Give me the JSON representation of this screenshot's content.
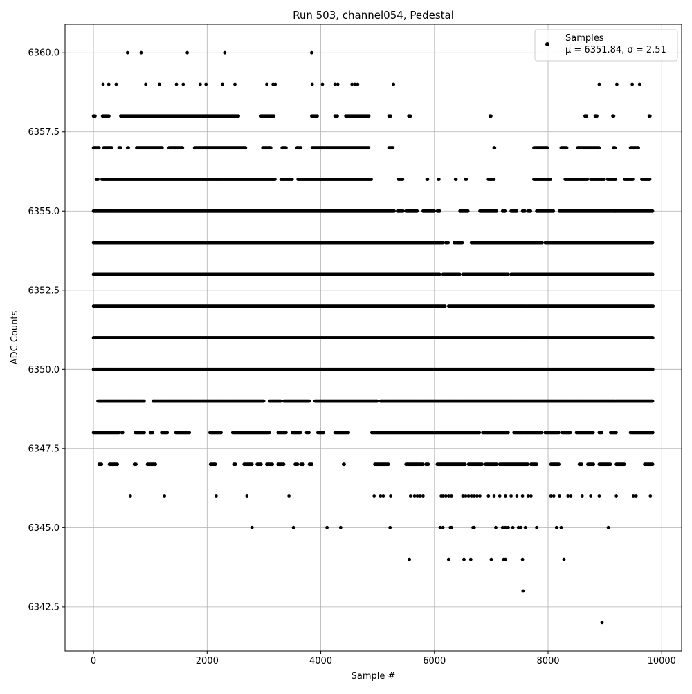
{
  "chart_data": {
    "type": "scatter",
    "title": "Run 503, channel054, Pedestal",
    "xlabel": "Sample #",
    "ylabel": "ADC Counts",
    "xlim": [
      -500,
      10350
    ],
    "ylim": [
      6341.1,
      6360.9
    ],
    "grid": true,
    "legend_position": "top-right",
    "x_ticks": [
      0,
      2000,
      4000,
      6000,
      8000,
      10000
    ],
    "x_tick_labels": [
      "0",
      "2000",
      "4000",
      "6000",
      "8000",
      "10000"
    ],
    "y_ticks": [
      6342.5,
      6345.0,
      6347.5,
      6350.0,
      6352.5,
      6355.0,
      6357.5,
      6360.0
    ],
    "y_tick_labels": [
      "6342.5",
      "6345.0",
      "6347.5",
      "6350.0",
      "6352.5",
      "6355.0",
      "6357.5",
      "6360.0"
    ],
    "colors": {
      "marker": "#000000",
      "grid": "#b0b0b0",
      "axes": "#000000",
      "legend_border": "#cccccc"
    },
    "series": [
      {
        "name": "Samples",
        "legend_stats": "μ = 6351.84, σ = 2.51",
        "level_ranges": [
          {
            "y": 6360,
            "x": [
              600,
              840,
              1650,
              2310,
              3840
            ]
          },
          {
            "y": 6359,
            "x": [
              170,
              270,
              400,
              920,
              1160,
              1460,
              1580,
              1880,
              1980,
              2270,
              2490,
              3050,
              3160,
              3200,
              3850,
              4030,
              4250,
              4300,
              4550,
              4600,
              4650,
              5280,
              8900,
              9210,
              9480,
              9610
            ]
          },
          {
            "y": 6358,
            "ranges": [
              [
                0,
                30
              ],
              [
                160,
                280
              ],
              [
                480,
                2560
              ],
              [
                2950,
                3180
              ],
              [
                3840,
                3940
              ],
              [
                4250,
                4300
              ],
              [
                4440,
                4850
              ],
              [
                5200,
                5230
              ],
              [
                5550,
                5580
              ],
              [
                6980,
                7000
              ],
              [
                8650,
                8680
              ],
              [
                8830,
                8860
              ],
              [
                9140,
                9160
              ],
              [
                9780,
                9800
              ]
            ]
          },
          {
            "y": 6357,
            "ranges": [
              [
                0,
                110
              ],
              [
                180,
                320
              ],
              [
                450,
                480
              ],
              [
                600,
                620
              ],
              [
                760,
                1220
              ],
              [
                1330,
                1580
              ],
              [
                1780,
                2680
              ],
              [
                2980,
                3120
              ],
              [
                3320,
                3400
              ],
              [
                3580,
                3650
              ],
              [
                3850,
                4850
              ],
              [
                5200,
                5280
              ],
              [
                7050,
                7060
              ],
              [
                7750,
                8000
              ],
              [
                8230,
                8330
              ],
              [
                8520,
                8900
              ],
              [
                9150,
                9180
              ],
              [
                9450,
                9600
              ]
            ]
          },
          {
            "y": 6356,
            "ranges": [
              [
                50,
                80
              ],
              [
                150,
                2200
              ],
              [
                2200,
                3200
              ],
              [
                3300,
                3500
              ],
              [
                3600,
                4900
              ],
              [
                5370,
                5450
              ],
              [
                5870,
                5880
              ],
              [
                6070,
                6080
              ],
              [
                6370,
                6380
              ],
              [
                6550,
                6560
              ],
              [
                6950,
                7050
              ],
              [
                7750,
                8050
              ],
              [
                8300,
                8700
              ],
              [
                8750,
                9000
              ],
              [
                9050,
                9200
              ],
              [
                9350,
                9500
              ],
              [
                9650,
                9800
              ]
            ]
          },
          {
            "y": 6355,
            "ranges": [
              [
                0,
                5300
              ],
              [
                5350,
                5450
              ],
              [
                5500,
                5700
              ],
              [
                5800,
                6000
              ],
              [
                6050,
                6100
              ],
              [
                6450,
                6600
              ],
              [
                6800,
                7100
              ],
              [
                7200,
                7250
              ],
              [
                7350,
                7450
              ],
              [
                7550,
                7600
              ],
              [
                7650,
                7700
              ],
              [
                7800,
                8100
              ],
              [
                8200,
                9850
              ]
            ]
          },
          {
            "y": 6354,
            "ranges": [
              [
                0,
                6150
              ],
              [
                6200,
                6250
              ],
              [
                6350,
                6500
              ],
              [
                6650,
                7900
              ],
              [
                7950,
                9850
              ]
            ]
          },
          {
            "y": 6353,
            "ranges": [
              [
                0,
                6100
              ],
              [
                6150,
                6450
              ],
              [
                6500,
                7300
              ],
              [
                7350,
                9850
              ]
            ]
          },
          {
            "y": 6352,
            "ranges": [
              [
                0,
                6200
              ],
              [
                6250,
                9850
              ]
            ]
          },
          {
            "y": 6351,
            "ranges": [
              [
                0,
                9850
              ]
            ]
          },
          {
            "y": 6350,
            "ranges": [
              [
                0,
                9850
              ]
            ]
          },
          {
            "y": 6349,
            "ranges": [
              [
                80,
                900
              ],
              [
                1050,
                3000
              ],
              [
                3100,
                3300
              ],
              [
                3350,
                3800
              ],
              [
                3900,
                5000
              ],
              [
                5050,
                9850
              ]
            ]
          },
          {
            "y": 6348,
            "ranges": [
              [
                0,
                450
              ],
              [
                500,
                520
              ],
              [
                740,
                900
              ],
              [
                1000,
                1050
              ],
              [
                1200,
                1300
              ],
              [
                1450,
                1700
              ],
              [
                2050,
                2250
              ],
              [
                2450,
                3100
              ],
              [
                3250,
                3400
              ],
              [
                3500,
                3650
              ],
              [
                3750,
                3800
              ],
              [
                3950,
                4050
              ],
              [
                4250,
                4500
              ],
              [
                4900,
                6800
              ],
              [
                6850,
                7300
              ],
              [
                7400,
                7900
              ],
              [
                7950,
                8200
              ],
              [
                8250,
                8400
              ],
              [
                8500,
                8800
              ],
              [
                8900,
                8950
              ],
              [
                9100,
                9200
              ],
              [
                9450,
                9850
              ]
            ]
          },
          {
            "y": 6347,
            "ranges": [
              [
                100,
                150
              ],
              [
                280,
                420
              ],
              [
                720,
                760
              ],
              [
                950,
                1100
              ],
              [
                2060,
                2150
              ],
              [
                2470,
                2500
              ],
              [
                2650,
                2800
              ],
              [
                2880,
                2950
              ],
              [
                3050,
                3150
              ],
              [
                3250,
                3350
              ],
              [
                3550,
                3600
              ],
              [
                3650,
                3700
              ],
              [
                3800,
                3850
              ],
              [
                4400,
                4420
              ],
              [
                4950,
                5200
              ],
              [
                5500,
                5800
              ],
              [
                5850,
                5900
              ],
              [
                6050,
                6550
              ],
              [
                6600,
                6850
              ],
              [
                6900,
                7100
              ],
              [
                7150,
                7650
              ],
              [
                7700,
                7800
              ],
              [
                8050,
                8200
              ],
              [
                8550,
                8600
              ],
              [
                8700,
                8800
              ],
              [
                8900,
                9100
              ],
              [
                9200,
                9350
              ],
              [
                9700,
                9850
              ]
            ]
          },
          {
            "y": 6346,
            "x": [
              650,
              1250,
              2160,
              2700,
              3440,
              4940,
              5050,
              5100,
              5230,
              5580,
              5650,
              5700,
              5750,
              5800,
              6120,
              6150,
              6200,
              6250,
              6300,
              6500,
              6550,
              6600,
              6650,
              6700,
              6750,
              6800,
              6950,
              7050,
              7150,
              7250,
              7350,
              7450,
              7550,
              7650,
              7700,
              8050,
              8100,
              8200,
              8350,
              8400,
              8600,
              8750,
              8900,
              9200,
              9500,
              9550,
              9800
            ]
          },
          {
            "y": 6345,
            "x": [
              2790,
              3520,
              4110,
              4350,
              5220,
              6100,
              6150,
              6280,
              6300,
              6680,
              6700,
              7080,
              7200,
              7250,
              7300,
              7380,
              7480,
              7520,
              7600,
              7800,
              8150,
              8230,
              9060
            ]
          },
          {
            "y": 6344,
            "x": [
              5560,
              6250,
              6520,
              6640,
              7000,
              7220,
              7250,
              7550,
              8280
            ]
          },
          {
            "y": 6343,
            "x": [
              7560
            ]
          },
          {
            "y": 6342,
            "x": [
              8950
            ]
          }
        ]
      }
    ]
  }
}
